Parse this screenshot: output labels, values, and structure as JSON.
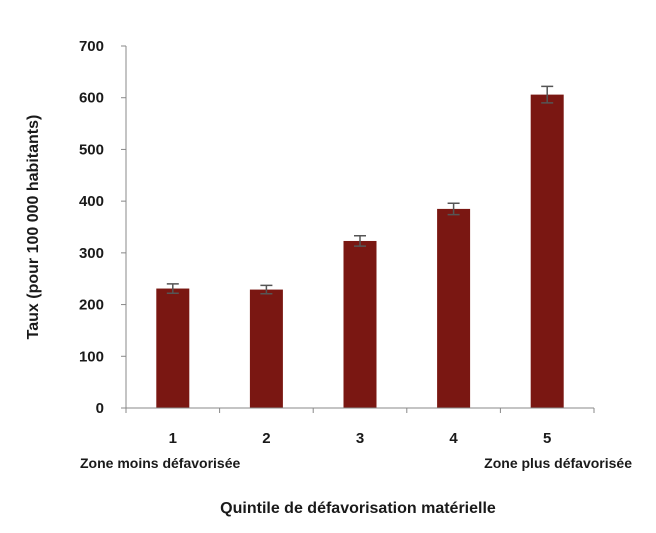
{
  "chart_data": {
    "type": "bar",
    "categories": [
      "1",
      "2",
      "3",
      "4",
      "5"
    ],
    "values": [
      231,
      229,
      323,
      385,
      606
    ],
    "error": [
      9,
      8,
      10,
      11,
      16
    ],
    "ylabel": "Taux (pour 100 000 habitants)",
    "xlabel": "Quintile de défavorisation matérielle",
    "ylim": [
      0,
      700
    ],
    "yticks": [
      0,
      100,
      200,
      300,
      400,
      500,
      600,
      700
    ],
    "grid": false,
    "annotations": {
      "left": "Zone moins défavorisée",
      "right": "Zone plus défavorisée"
    },
    "colors": {
      "bar": "#7a1712",
      "error_bar": "#555555",
      "axis": "#888888"
    }
  }
}
